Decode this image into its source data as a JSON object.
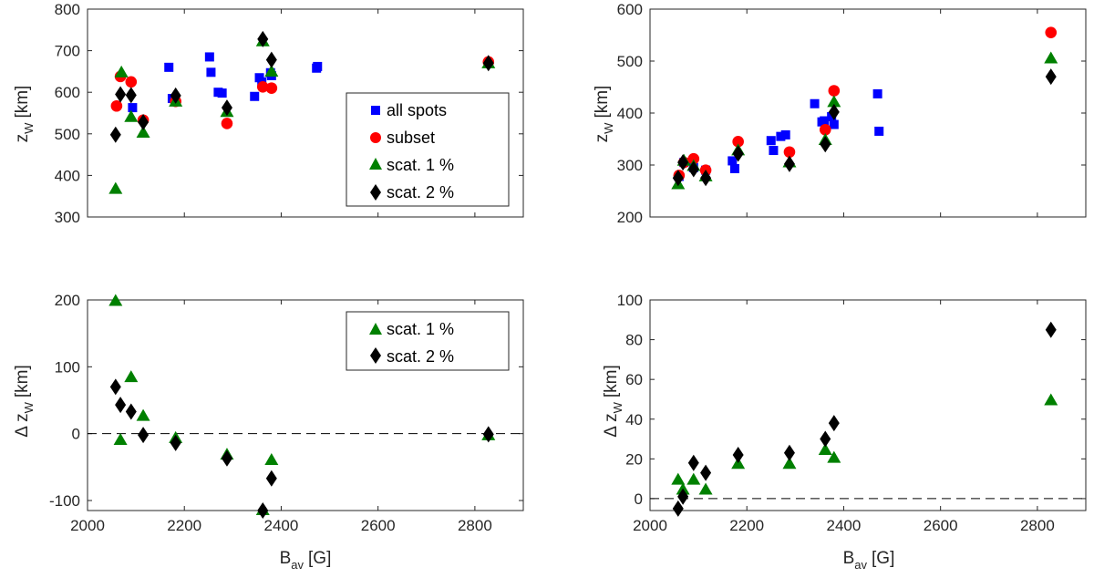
{
  "figure": {
    "x_label_main": "B",
    "x_label_sub": "av",
    "x_label_unit": "[G]",
    "top_y_main": "z",
    "top_y_sub": "W",
    "top_y_unit": "[km]",
    "bottom_y_main": "Δ z",
    "bottom_y_sub": "W",
    "bottom_y_unit": "[km]"
  },
  "legend": {
    "all_spots": "all spots",
    "subset": "subset",
    "scat1": "scat. 1 %",
    "scat2": "scat. 2 %"
  },
  "colors": {
    "all_spots": "#0000ff",
    "subset": "#ff0000",
    "scat1": "#008000",
    "scat2": "#000000"
  },
  "chart_data": [
    {
      "id": "top-left",
      "type": "scatter",
      "xlim": [
        2000,
        2900
      ],
      "ylim": [
        300,
        800
      ],
      "xticks": [
        2000,
        2200,
        2400,
        2600,
        2800
      ],
      "yticks": [
        300,
        400,
        500,
        600,
        700,
        800
      ],
      "show_x_ticklabels": false,
      "legend_position": "center-right",
      "series": [
        {
          "name": "all spots",
          "marker": "square",
          "color": "#0000ff",
          "x": [
            2093,
            2168,
            2175,
            2252,
            2255,
            2270,
            2278,
            2345,
            2355,
            2360,
            2378,
            2380,
            2473,
            2475
          ],
          "y": [
            563,
            660,
            585,
            685,
            648,
            600,
            598,
            590,
            635,
            625,
            647,
            640,
            658,
            662
          ]
        },
        {
          "name": "subset",
          "marker": "circle",
          "color": "#ff0000",
          "x": [
            2060,
            2068,
            2090,
            2115,
            2182,
            2288,
            2362,
            2380,
            2828
          ],
          "y": [
            567,
            638,
            625,
            533,
            578,
            525,
            613,
            610,
            673
          ]
        },
        {
          "name": "scat. 1 %",
          "marker": "triangle",
          "color": "#008000",
          "x": [
            2058,
            2070,
            2090,
            2115,
            2182,
            2288,
            2362,
            2380,
            2828
          ],
          "y": [
            370,
            650,
            543,
            505,
            580,
            555,
            725,
            652,
            672
          ]
        },
        {
          "name": "scat. 2 %",
          "marker": "diamond",
          "color": "#000000",
          "x": [
            2058,
            2068,
            2090,
            2115,
            2182,
            2288,
            2362,
            2380,
            2828
          ],
          "y": [
            498,
            595,
            593,
            528,
            592,
            563,
            728,
            678,
            670
          ]
        }
      ]
    },
    {
      "id": "top-right",
      "type": "scatter",
      "xlim": [
        2000,
        2900
      ],
      "ylim": [
        200,
        600
      ],
      "xticks": [
        2000,
        2200,
        2400,
        2600,
        2800
      ],
      "yticks": [
        200,
        300,
        400,
        500,
        600
      ],
      "show_x_ticklabels": false,
      "series": [
        {
          "name": "all spots",
          "marker": "square",
          "color": "#0000ff",
          "x": [
            2060,
            2070,
            2090,
            2115,
            2170,
            2175,
            2250,
            2255,
            2270,
            2280,
            2340,
            2355,
            2360,
            2375,
            2380,
            2470,
            2473
          ],
          "y": [
            278,
            305,
            295,
            290,
            308,
            293,
            347,
            328,
            355,
            358,
            418,
            383,
            385,
            393,
            378,
            437,
            365
          ]
        },
        {
          "name": "subset",
          "marker": "circle",
          "color": "#ff0000",
          "x": [
            2060,
            2070,
            2090,
            2115,
            2182,
            2288,
            2362,
            2380,
            2828
          ],
          "y": [
            280,
            305,
            312,
            290,
            345,
            325,
            368,
            443,
            555
          ]
        },
        {
          "name": "scat. 1 %",
          "marker": "triangle",
          "color": "#008000",
          "x": [
            2058,
            2070,
            2090,
            2115,
            2182,
            2288,
            2362,
            2380,
            2828
          ],
          "y": [
            265,
            310,
            300,
            280,
            330,
            307,
            350,
            423,
            507
          ]
        },
        {
          "name": "scat. 2 %",
          "marker": "diamond",
          "color": "#000000",
          "x": [
            2058,
            2068,
            2090,
            2115,
            2182,
            2288,
            2362,
            2380,
            2828
          ],
          "y": [
            275,
            305,
            292,
            275,
            322,
            302,
            340,
            402,
            470
          ]
        }
      ]
    },
    {
      "id": "bottom-left",
      "type": "scatter",
      "xlim": [
        2000,
        2900
      ],
      "ylim": [
        -115,
        200
      ],
      "xticks": [
        2000,
        2200,
        2400,
        2600,
        2800
      ],
      "yticks": [
        -100,
        0,
        100,
        200
      ],
      "show_x_ticklabels": true,
      "zero_line": true,
      "legend_position": "top-right",
      "series": [
        {
          "name": "scat. 1 %",
          "marker": "triangle",
          "color": "#008000",
          "x": [
            2058,
            2068,
            2090,
            2115,
            2182,
            2288,
            2362,
            2380,
            2828
          ],
          "y": [
            200,
            -8,
            86,
            28,
            -5,
            -30,
            -113,
            -38,
            -1
          ]
        },
        {
          "name": "scat. 2 %",
          "marker": "diamond",
          "color": "#000000",
          "x": [
            2058,
            2068,
            2090,
            2115,
            2182,
            2288,
            2362,
            2380,
            2828
          ],
          "y": [
            70,
            43,
            33,
            -2,
            -14,
            -37,
            -115,
            -67,
            -1
          ]
        }
      ]
    },
    {
      "id": "bottom-right",
      "type": "scatter",
      "xlim": [
        2000,
        2900
      ],
      "ylim": [
        -6,
        100
      ],
      "xticks": [
        2000,
        2200,
        2400,
        2600,
        2800
      ],
      "yticks": [
        0,
        20,
        40,
        60,
        80,
        100
      ],
      "show_x_ticklabels": true,
      "zero_line": true,
      "series": [
        {
          "name": "scat. 1 %",
          "marker": "triangle",
          "color": "#008000",
          "x": [
            2058,
            2068,
            2090,
            2115,
            2182,
            2288,
            2362,
            2380,
            2828
          ],
          "y": [
            10,
            5,
            10,
            5,
            18,
            18,
            25,
            21,
            50
          ]
        },
        {
          "name": "scat. 2 %",
          "marker": "diamond",
          "color": "#000000",
          "x": [
            2058,
            2068,
            2090,
            2115,
            2182,
            2288,
            2362,
            2380,
            2828
          ],
          "y": [
            -5,
            1,
            18,
            13,
            22,
            23,
            30,
            38,
            85
          ]
        }
      ]
    }
  ]
}
